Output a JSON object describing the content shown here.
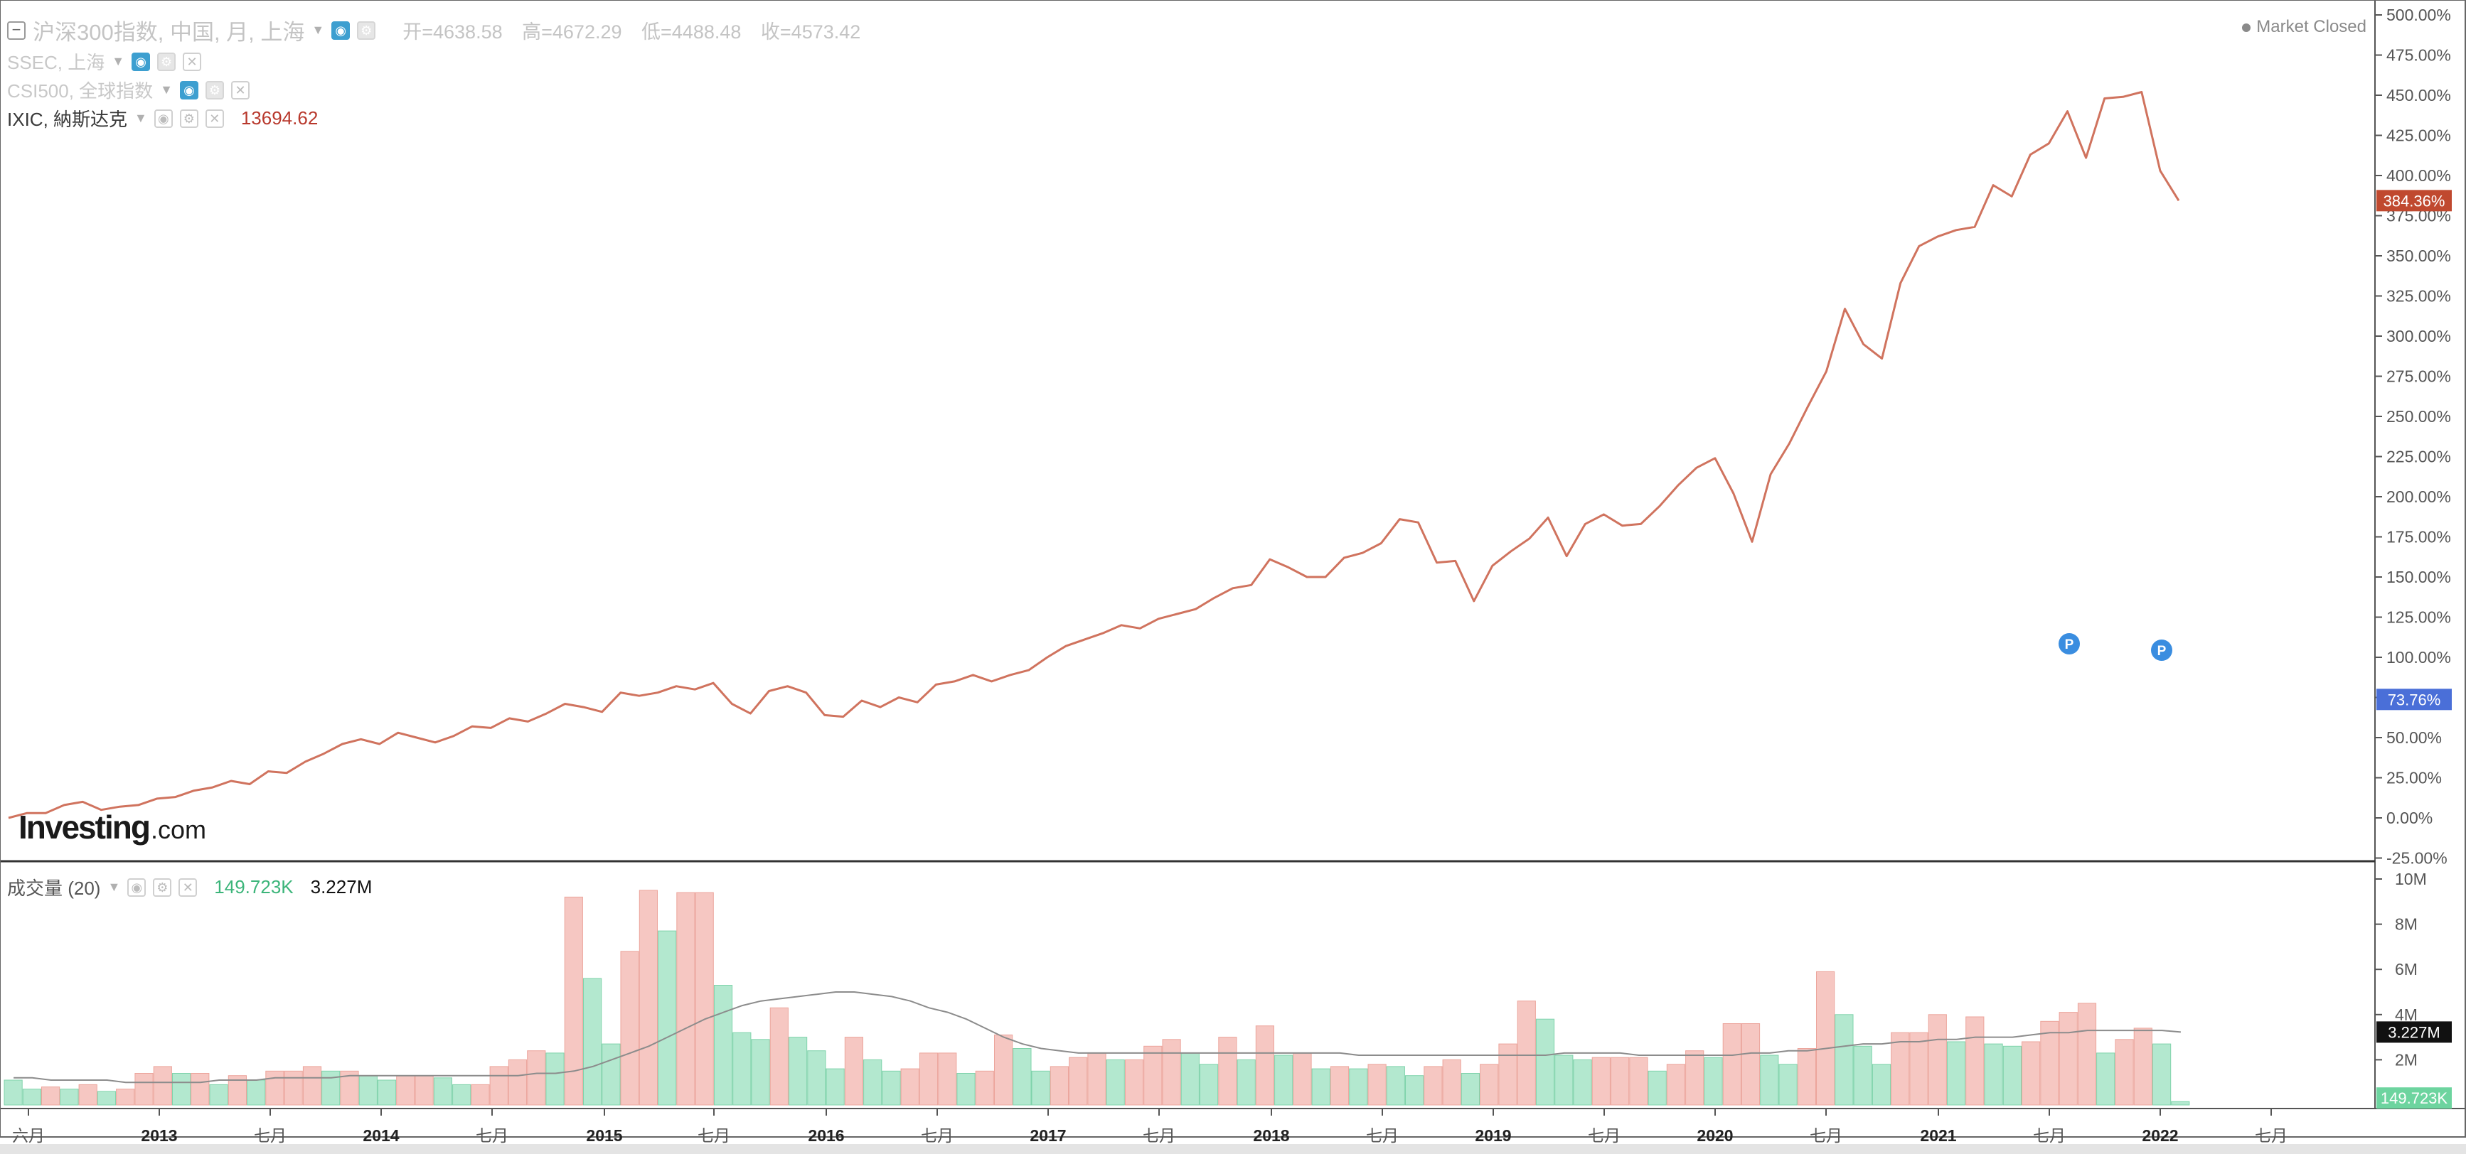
{
  "main_legend": {
    "title": "沪深300指数, 中国, 月, 上海",
    "open": "开=4638.58",
    "high": "高=4672.29",
    "low": "低=4488.48",
    "close": "收=4573.42"
  },
  "overlays": [
    {
      "label": "SSEC, 上海"
    },
    {
      "label": "CSI500, 全球指数"
    },
    {
      "label": "IXIC, 納斯达克",
      "value": "13694.62",
      "color": "#b8382c"
    }
  ],
  "market_status": "Market Closed",
  "watermark": {
    "brand": "Investing",
    "suffix": ".com"
  },
  "volume_legend": {
    "label": "成交量 (20)",
    "value1": "149.723K",
    "value2": "3.227M"
  },
  "axis_badges": {
    "ixic": "384.36%",
    "blue": "73.76%",
    "volume_ma": "3.227M",
    "volume_last": "149.723K"
  },
  "p_markers": [
    {
      "label": "P"
    },
    {
      "label": "P"
    }
  ],
  "colors": {
    "ixic_line": "#d0735e",
    "vol_up": "#b3e8cf",
    "vol_down": "#f6c7c2",
    "ma_line": "#8c8c8c",
    "badge_red": "#c0492f",
    "badge_blue": "#4a6fd8",
    "badge_green": "#6dd49f",
    "marker_blue": "#3a8de0"
  },
  "chart_data": [
    {
      "type": "line",
      "series": [
        {
          "name": "IXIC, 納斯达克",
          "values": [
            0,
            3,
            3,
            8,
            10,
            5,
            7,
            8,
            12,
            13,
            17,
            19,
            23,
            21,
            29,
            28,
            35,
            40,
            46,
            49,
            46,
            53,
            50,
            47,
            51,
            57,
            56,
            62,
            60,
            65,
            71,
            69,
            66,
            78,
            76,
            78,
            82,
            80,
            84,
            71,
            65,
            79,
            82,
            78,
            64,
            63,
            73,
            69,
            75,
            72,
            83,
            85,
            89,
            85,
            89,
            92,
            100,
            107,
            111,
            115,
            120,
            118,
            124,
            127,
            130,
            137,
            143,
            145,
            161,
            156,
            150,
            150,
            162,
            165,
            171,
            186,
            184,
            159,
            160,
            135,
            157,
            166,
            174,
            187,
            163,
            183,
            189,
            182,
            183,
            194,
            207,
            218,
            224,
            202,
            172,
            214,
            233,
            256,
            278,
            317,
            295,
            286,
            333,
            356,
            362,
            366,
            368,
            394,
            387,
            413,
            420,
            440,
            411,
            448,
            449,
            452,
            403,
            384.36
          ]
        }
      ],
      "x_ticks": [
        "六月",
        "2013",
        "七月",
        "2014",
        "七月",
        "2015",
        "七月",
        "2016",
        "七月",
        "2017",
        "七月",
        "2018",
        "七月",
        "2019",
        "七月",
        "2020",
        "七月",
        "2021",
        "七月",
        "2022",
        "七月"
      ],
      "y_ticks": [
        "-25.00%",
        "0.00%",
        "25.00%",
        "50.00%",
        "75.00%",
        "100.00%",
        "125.00%",
        "150.00%",
        "175.00%",
        "200.00%",
        "225.00%",
        "250.00%",
        "275.00%",
        "300.00%",
        "325.00%",
        "350.00%",
        "375.00%",
        "400.00%",
        "425.00%",
        "450.00%",
        "475.00%",
        "500.00%"
      ],
      "ylim": [
        -25,
        500
      ],
      "grid": false
    },
    {
      "type": "bar",
      "series": [
        {
          "name": "成交量 (20)",
          "values": [
            1.1,
            0.7,
            0.8,
            0.7,
            0.9,
            0.6,
            0.7,
            1.4,
            1.7,
            1.4,
            1.4,
            0.9,
            1.3,
            1.1,
            1.5,
            1.5,
            1.7,
            1.5,
            1.5,
            1.3,
            1.1,
            1.3,
            1.3,
            1.2,
            0.9,
            0.9,
            1.7,
            2.0,
            2.4,
            2.3,
            9.2,
            5.6,
            2.7,
            6.8,
            9.5,
            7.7,
            9.4,
            9.4,
            5.3,
            3.2,
            2.9,
            4.3,
            3.0,
            2.4,
            1.6,
            3.0,
            2.0,
            1.5,
            1.6,
            2.3,
            2.3,
            1.4,
            1.5,
            3.1,
            2.5,
            1.5,
            1.7,
            2.1,
            2.3,
            2.0,
            2.0,
            2.6,
            2.9,
            2.3,
            1.8,
            3.0,
            2.0,
            3.5,
            2.2,
            2.3,
            1.6,
            1.7,
            1.6,
            1.8,
            1.7,
            1.3,
            1.7,
            2.0,
            1.4,
            1.8,
            2.7,
            4.6,
            3.8,
            2.2,
            2.0,
            2.1,
            2.1,
            2.1,
            1.5,
            1.8,
            2.4,
            2.1,
            3.6,
            3.6,
            2.2,
            1.8,
            2.5,
            5.9,
            4.0,
            2.6,
            1.8,
            3.2,
            3.2,
            4.0,
            2.8,
            3.9,
            2.7,
            2.6,
            2.8,
            3.7,
            4.1,
            4.5,
            2.3,
            2.9,
            3.4,
            2.7,
            0.15
          ]
        }
      ],
      "ma": [
        1.2,
        1.2,
        1.1,
        1.1,
        1.1,
        1.1,
        1.0,
        1.0,
        1.0,
        1.0,
        1.0,
        1.1,
        1.1,
        1.1,
        1.2,
        1.2,
        1.2,
        1.2,
        1.3,
        1.3,
        1.3,
        1.3,
        1.3,
        1.3,
        1.3,
        1.3,
        1.3,
        1.3,
        1.4,
        1.4,
        1.5,
        1.7,
        2.0,
        2.3,
        2.6,
        3.0,
        3.4,
        3.8,
        4.1,
        4.4,
        4.6,
        4.7,
        4.8,
        4.9,
        5.0,
        5.0,
        4.9,
        4.8,
        4.6,
        4.3,
        4.1,
        3.8,
        3.4,
        3.0,
        2.7,
        2.5,
        2.4,
        2.3,
        2.3,
        2.3,
        2.3,
        2.3,
        2.3,
        2.3,
        2.3,
        2.3,
        2.3,
        2.3,
        2.3,
        2.3,
        2.3,
        2.3,
        2.2,
        2.2,
        2.2,
        2.2,
        2.2,
        2.2,
        2.2,
        2.2,
        2.2,
        2.2,
        2.2,
        2.3,
        2.3,
        2.3,
        2.3,
        2.2,
        2.2,
        2.2,
        2.2,
        2.2,
        2.2,
        2.3,
        2.3,
        2.4,
        2.4,
        2.5,
        2.6,
        2.7,
        2.7,
        2.8,
        2.8,
        2.9,
        2.9,
        3.0,
        3.0,
        3.0,
        3.1,
        3.2,
        3.2,
        3.3,
        3.3,
        3.3,
        3.3,
        3.3,
        3.227
      ],
      "y_ticks": [
        "2M",
        "4M",
        "6M",
        "8M",
        "10M"
      ],
      "ylim": [
        0,
        10
      ],
      "grid": false
    }
  ]
}
